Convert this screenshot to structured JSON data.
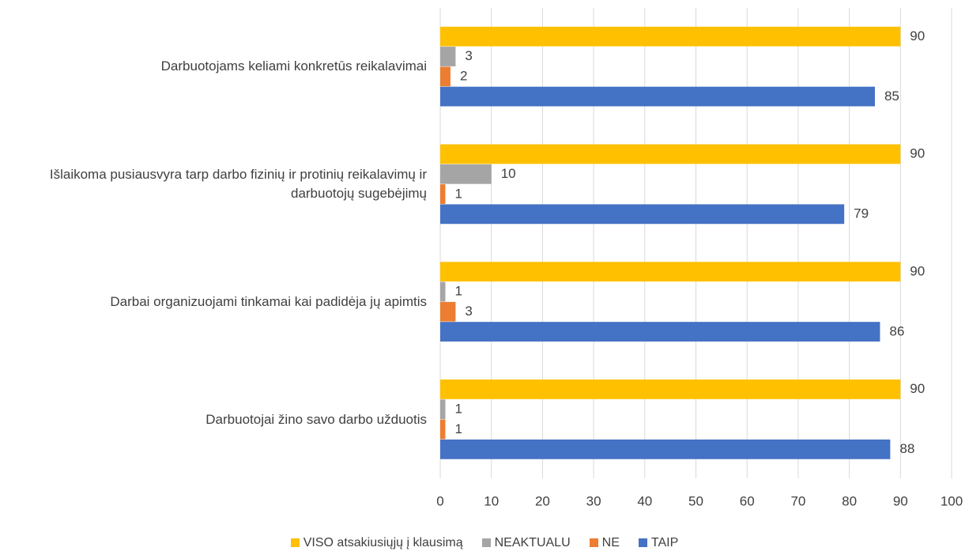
{
  "chart_data": {
    "type": "barh",
    "categories": [
      "Darbuotojams keliami konkretūs reikalavimai",
      "Išlaikoma pusiausvyra tarp darbo fizinių ir protinių reikalavimų ir darbuotojų sugebėjimų",
      "Darbai organizuojami tinkamai kai padidėja jų apimtis",
      "Darbuotojai žino savo darbo užduotis"
    ],
    "series": [
      {
        "name": "VISO atsakiusiųjų į klausimą",
        "color": "#FFC000",
        "values": [
          90,
          90,
          90,
          90
        ]
      },
      {
        "name": "NEAKTUALU",
        "color": "#A5A5A5",
        "values": [
          3,
          10,
          1,
          1
        ]
      },
      {
        "name": "NE",
        "color": "#ED7D31",
        "values": [
          2,
          1,
          3,
          1
        ]
      },
      {
        "name": "TAIP",
        "color": "#4472C4",
        "values": [
          85,
          79,
          86,
          88
        ]
      }
    ],
    "xlim": [
      0,
      100
    ],
    "xticks": [
      0,
      10,
      20,
      30,
      40,
      50,
      60,
      70,
      80,
      90,
      100
    ],
    "grid": true,
    "legend": "bottom"
  }
}
